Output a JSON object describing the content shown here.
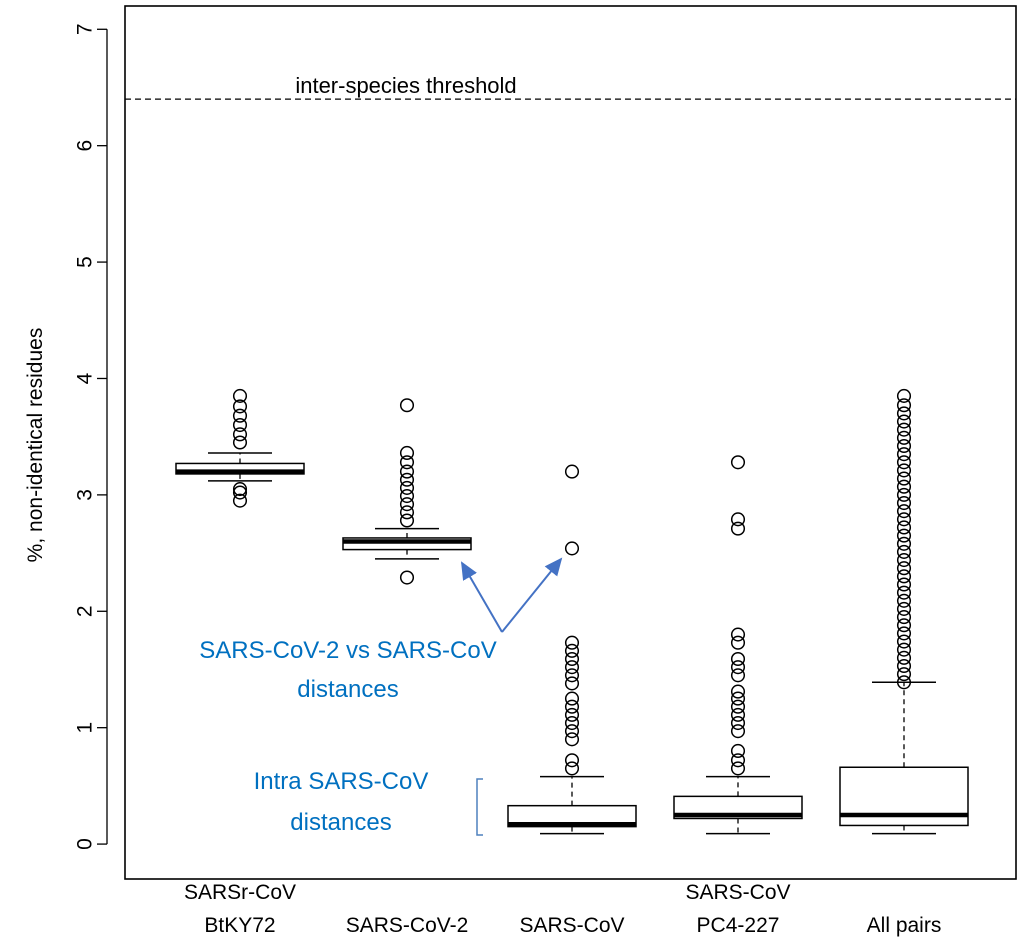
{
  "chart_data": {
    "type": "box",
    "title": "",
    "xlabel": "",
    "ylabel": "%, non-identical residues",
    "ylim": [
      -0.3,
      7.2
    ],
    "yticks": [
      0,
      1,
      2,
      3,
      4,
      5,
      6,
      7
    ],
    "grid": false,
    "categories": [
      {
        "lines": [
          "SARSr-CoV",
          "BtKY72"
        ]
      },
      {
        "lines": [
          "",
          "SARS-CoV-2"
        ]
      },
      {
        "lines": [
          "",
          "SARS-CoV"
        ]
      },
      {
        "lines": [
          "SARS-CoV",
          "PC4-227"
        ]
      },
      {
        "lines": [
          "",
          "All pairs"
        ]
      }
    ],
    "boxes": [
      {
        "whisker_low": 3.12,
        "q1": 3.18,
        "median": 3.2,
        "q3": 3.27,
        "whisker_high": 3.36,
        "outliers": [
          2.95,
          3.02,
          3.05,
          3.45,
          3.52,
          3.6,
          3.68,
          3.76,
          3.85
        ]
      },
      {
        "whisker_low": 2.45,
        "q1": 2.53,
        "median": 2.6,
        "q3": 2.63,
        "whisker_high": 2.71,
        "outliers": [
          2.29,
          2.78,
          2.85,
          2.92,
          2.99,
          3.06,
          3.13,
          3.2,
          3.28,
          3.36,
          3.77
        ]
      },
      {
        "whisker_low": 0.09,
        "q1": 0.15,
        "median": 0.17,
        "q3": 0.33,
        "whisker_high": 0.58,
        "outliers": [
          0.65,
          0.72,
          0.9,
          0.97,
          1.04,
          1.11,
          1.18,
          1.25,
          1.38,
          1.45,
          1.52,
          1.59,
          1.66,
          1.73,
          2.54,
          3.2
        ]
      },
      {
        "whisker_low": 0.09,
        "q1": 0.22,
        "median": 0.25,
        "q3": 0.41,
        "whisker_high": 0.58,
        "outliers": [
          0.65,
          0.72,
          0.8,
          0.97,
          1.04,
          1.11,
          1.18,
          1.25,
          1.31,
          1.45,
          1.52,
          1.59,
          1.73,
          1.8,
          2.71,
          2.79,
          3.28
        ]
      },
      {
        "whisker_low": 0.09,
        "q1": 0.16,
        "median": 0.25,
        "q3": 0.66,
        "whisker_high": 1.39,
        "outliers": [
          1.39,
          1.46,
          1.53,
          1.6,
          1.67,
          1.74,
          1.81,
          1.88,
          1.95,
          2.02,
          2.09,
          2.16,
          2.23,
          2.3,
          2.37,
          2.44,
          2.51,
          2.58,
          2.65,
          2.72,
          2.79,
          2.86,
          2.93,
          3.0,
          3.07,
          3.14,
          3.21,
          3.28,
          3.35,
          3.42,
          3.49,
          3.56,
          3.63,
          3.7,
          3.77,
          3.85
        ]
      }
    ],
    "threshold": {
      "value": 6.4,
      "label": "inter-species threshold"
    },
    "annotations": {
      "sars2_vs_sars": {
        "lines": [
          "SARS-CoV-2 vs SARS-CoV",
          "distances"
        ],
        "color": "#0070c0"
      },
      "intra_sars": {
        "lines": [
          "Intra SARS-CoV",
          "distances"
        ],
        "color": "#0070c0"
      }
    },
    "colors": {
      "arrow": "#4472c4",
      "bracket": "#4f81bd",
      "annotation_text": "#0070c0"
    }
  }
}
